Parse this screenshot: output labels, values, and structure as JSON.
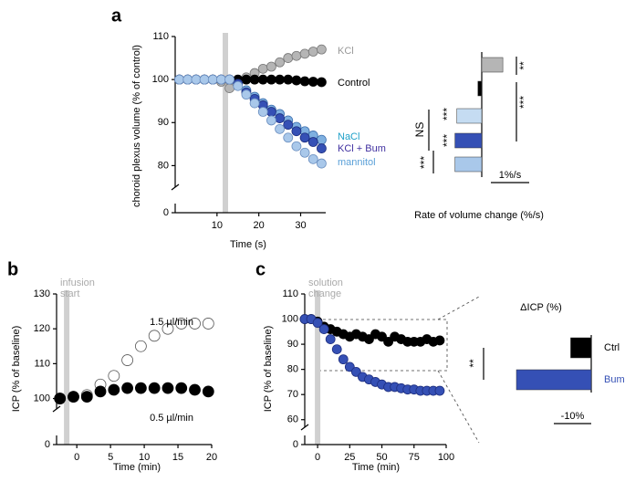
{
  "chart_data": [
    {
      "type": "line",
      "panel_label": "a",
      "y_label": "choroid plexus volume (% of control)",
      "x_label": "Time (s)",
      "xlim": [
        0,
        36
      ],
      "xticks": [
        10,
        20,
        30
      ],
      "ylim": [
        75,
        110
      ],
      "yticks": [
        80,
        90,
        100,
        110
      ],
      "y_break_tick": 0,
      "marker_x": 12,
      "x": [
        1,
        3,
        5,
        7,
        9,
        11,
        13,
        15,
        17,
        19,
        21,
        23,
        25,
        27,
        29,
        31,
        33,
        35
      ],
      "series": [
        {
          "name": "KCl",
          "color": "#b5b5b5",
          "edge": "#777777",
          "label_color": "#999999",
          "values": [
            100,
            100,
            100,
            100,
            100,
            99.5,
            98,
            99.5,
            100.5,
            101.5,
            102.5,
            103,
            104,
            105,
            105.5,
            106,
            106.5,
            107
          ]
        },
        {
          "name": "Control",
          "color": "#000000",
          "edge": "#000000",
          "label_color": "#000000",
          "values": [
            100,
            100,
            100,
            100,
            100,
            100,
            100,
            100,
            100,
            100,
            100,
            100,
            100,
            100,
            99.8,
            99.6,
            99.5,
            99.4
          ]
        },
        {
          "name": "NaCl",
          "color": "#7fb0e0",
          "edge": "#3d6fae",
          "label_color": "#1ea0c8",
          "values": [
            100,
            100,
            100,
            100,
            100,
            100,
            100,
            99,
            97.5,
            96,
            94.5,
            93,
            92,
            90.5,
            89,
            88,
            87,
            86
          ]
        },
        {
          "name": "KCl + Bum",
          "color": "#3550b5",
          "edge": "#1e2f80",
          "label_color": "#4030a0",
          "values": [
            100,
            100,
            100,
            100,
            100,
            100,
            100,
            99,
            97,
            95.5,
            94,
            92.5,
            91,
            89.5,
            88,
            86.5,
            85.5,
            84
          ]
        },
        {
          "name": "mannitol",
          "color": "#a9c8ea",
          "edge": "#6b8fc0",
          "label_color": "#5aa0d8",
          "values": [
            100,
            100,
            100,
            100,
            100,
            100,
            100,
            98.5,
            96.5,
            94.5,
            92.5,
            90.5,
            88.5,
            86.5,
            84.5,
            83,
            81.5,
            80.5
          ]
        }
      ]
    },
    {
      "type": "hbar",
      "x_label": "Rate of volume change (%/s)",
      "values": [
        0.55,
        -0.1,
        -0.65,
        -0.7,
        -0.7
      ],
      "colors": [
        "#b5b5b5",
        "#000000",
        "#c5dcf2",
        "#3550b5",
        "#a9c8ea"
      ],
      "scale_bar": {
        "value": 1,
        "label": "1%/s"
      },
      "annotations": [
        "**",
        "***",
        "NS",
        "***",
        "***",
        "***"
      ]
    },
    {
      "type": "line",
      "panel_label": "b",
      "y_label": "ICP (% of baseline)",
      "x_label": "Time (min)",
      "annotation": [
        "infusion",
        "start"
      ],
      "xlim": [
        -3,
        20
      ],
      "xticks": [
        0,
        5,
        10,
        15,
        20
      ],
      "ylim": [
        97,
        130
      ],
      "yticks": [
        100,
        110,
        120,
        130
      ],
      "y_break_tick": 0,
      "marker_x": -1.5,
      "x": [
        -2.5,
        -0.5,
        1.5,
        3.5,
        5.5,
        7.5,
        9.5,
        11.5,
        13.5,
        15.5,
        17.5,
        19.5
      ],
      "series": [
        {
          "name": "1.5 µl/min",
          "color": "#ffffff",
          "edge": "#555555",
          "label_color": "#000000",
          "values": [
            100,
            100.5,
            101,
            104,
            106.5,
            111,
            115,
            118,
            120,
            121.5,
            121.5,
            121.5
          ]
        },
        {
          "name": "0.5 µl/min",
          "color": "#000000",
          "edge": "#000000",
          "label_color": "#000000",
          "values": [
            100,
            100.5,
            100.5,
            102,
            102.5,
            103,
            103,
            103,
            103,
            103,
            102.5,
            102
          ]
        }
      ]
    },
    {
      "type": "line",
      "panel_label": "c",
      "y_label": "ICP (% of baseline)",
      "x_label": "Time (min)",
      "annotation": [
        "solution",
        "change"
      ],
      "xlim": [
        -10,
        100
      ],
      "xticks": [
        0,
        25,
        50,
        75,
        100
      ],
      "ylim": [
        57,
        110
      ],
      "yticks": [
        60,
        70,
        80,
        90,
        100,
        110
      ],
      "y_break_tick": 0,
      "marker_x": 0,
      "x": [
        -10,
        -5,
        0,
        5,
        10,
        15,
        20,
        25,
        30,
        35,
        40,
        45,
        50,
        55,
        60,
        65,
        70,
        75,
        80,
        85,
        90,
        95
      ],
      "series": [
        {
          "name": "Ctrl",
          "color": "#000000",
          "edge": "#000000",
          "values": [
            100,
            100,
            99,
            97,
            96,
            95,
            94,
            93,
            94,
            93,
            92,
            94,
            93,
            91,
            93,
            92,
            91,
            91,
            91,
            92,
            91,
            91.5
          ]
        },
        {
          "name": "Bum",
          "color": "#3550b5",
          "edge": "#1e2f80",
          "values": [
            100,
            100,
            98.5,
            96,
            92,
            88,
            84,
            81,
            79,
            77,
            76,
            75,
            74,
            73,
            73,
            72.5,
            72,
            72,
            71.5,
            71.5,
            71.5,
            71.5
          ]
        }
      ]
    },
    {
      "type": "hbar",
      "title": "ΔICP (%)",
      "categories": [
        "Ctrl",
        "Bum"
      ],
      "values": [
        -5.5,
        -20
      ],
      "colors": [
        "#000000",
        "#3550b5"
      ],
      "label_colors": [
        "#000000",
        "#3550b5"
      ],
      "scale_bar": {
        "value": -10,
        "label": "-10%"
      },
      "annotations": [
        "**"
      ]
    }
  ]
}
